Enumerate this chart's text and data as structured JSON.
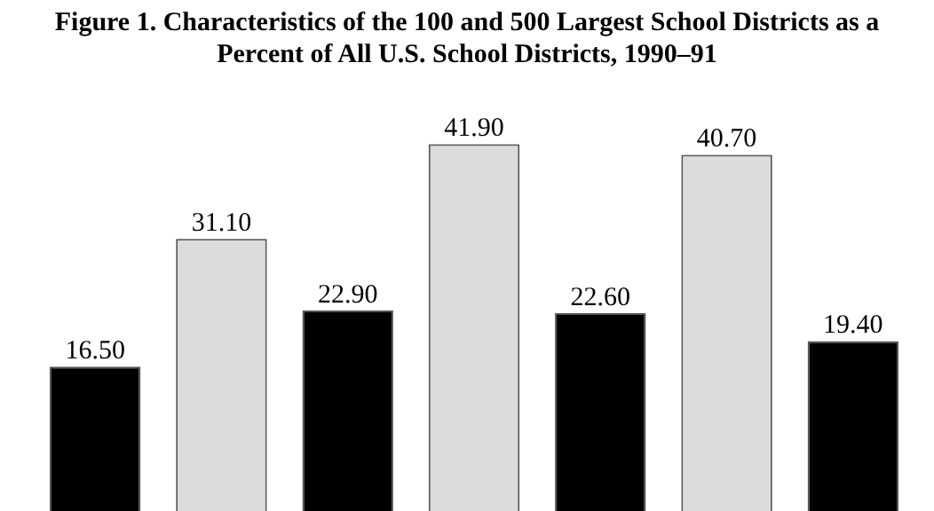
{
  "chart_data": {
    "type": "bar",
    "title": "Figure 1. Characteristics of the 100 and 500 Largest School Districts as a Percent of All U.S. School Districts, 1990–91",
    "categories": [
      null,
      null,
      null,
      null,
      null,
      null,
      null
    ],
    "series": [
      {
        "colors": [
          "#000000",
          "#dcdcdc",
          "#000000",
          "#dcdcdc",
          "#000000",
          "#dcdcdc",
          "#000000"
        ],
        "values": [
          16.5,
          31.1,
          22.9,
          41.9,
          22.6,
          40.7,
          19.4
        ],
        "value_labels": [
          "16.50",
          "31.10",
          "22.90",
          "41.90",
          "22.60",
          "40.70",
          "19.40"
        ]
      }
    ],
    "legend": false,
    "grid": false
  }
}
